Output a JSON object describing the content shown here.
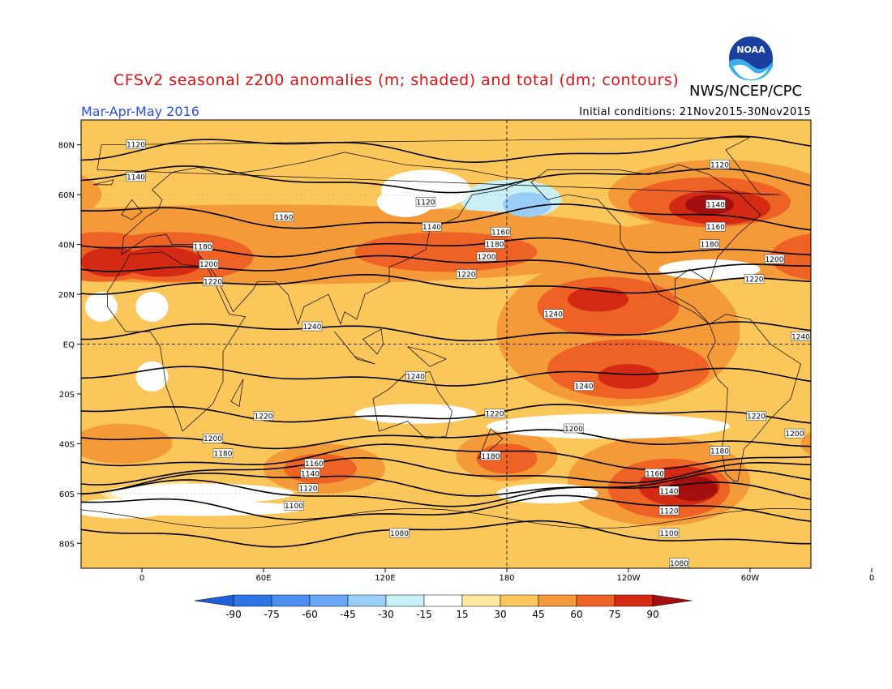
{
  "title": "CFSv2 seasonal z200 anomalies (m; shaded) and total (dm; contours)",
  "agency": "NWS/NCEP/CPC",
  "period": "Mar-Apr-May 2016",
  "initial_conditions": "Initial conditions: 21Nov2015-30Nov2015",
  "logo": {
    "text": "NOAA",
    "icon": "noaa-logo-icon"
  },
  "colors": {
    "background": "#ffffff",
    "title": "#e01010",
    "period": "#2a4ee0"
  },
  "axes": {
    "lat_labels": [
      "80N",
      "60N",
      "40N",
      "20N",
      "EQ",
      "20S",
      "40S",
      "60S",
      "80S"
    ],
    "lon_labels": [
      "0",
      "60E",
      "120E",
      "180",
      "120W",
      "60W",
      "0"
    ]
  },
  "colorbar": {
    "ticks": [
      "-90",
      "-75",
      "-60",
      "-45",
      "-30",
      "-15",
      "15",
      "30",
      "45",
      "60",
      "75",
      "90"
    ],
    "colors": [
      "#1c5fd6",
      "#2e75e8",
      "#4b8ff0",
      "#6aa8f5",
      "#9acdf8",
      "#c8f0f5",
      "#ffffff",
      "#ffe9a0",
      "#fcc75a",
      "#f49a38",
      "#ee6226",
      "#d42a14",
      "#a50e0e"
    ]
  },
  "contours": [
    {
      "label": "1120",
      "lat": 78
    },
    {
      "label": "1140",
      "lat": 66
    },
    {
      "label": "1160",
      "lat": 51
    },
    {
      "label": "1180",
      "lat": 39
    },
    {
      "label": "1200",
      "lat": 32
    },
    {
      "label": "1220",
      "lat": 24
    },
    {
      "label": "1240",
      "lat": 5
    },
    {
      "label": "1240",
      "lat": -13
    },
    {
      "label": "1220",
      "lat": -28
    },
    {
      "label": "1200",
      "lat": -38
    },
    {
      "label": "1180",
      "lat": -45
    },
    {
      "label": "1160",
      "lat": -51
    },
    {
      "label": "1140",
      "lat": -56
    },
    {
      "label": "1120",
      "lat": -60
    },
    {
      "label": "1100",
      "lat": -66
    },
    {
      "label": "1080",
      "lat": -76
    }
  ],
  "contour_labels": [
    {
      "text": "1120",
      "lon": -3,
      "lat": 80
    },
    {
      "text": "1120",
      "lon": 140,
      "lat": 57
    },
    {
      "text": "1120",
      "lon": 285,
      "lat": 72
    },
    {
      "text": "1140",
      "lon": -3,
      "lat": 67
    },
    {
      "text": "1140",
      "lon": 143,
      "lat": 47
    },
    {
      "text": "1140",
      "lon": 283,
      "lat": 56
    },
    {
      "text": "1160",
      "lon": 70,
      "lat": 51
    },
    {
      "text": "1160",
      "lon": 177,
      "lat": 45
    },
    {
      "text": "1160",
      "lon": 283,
      "lat": 47
    },
    {
      "text": "1180",
      "lon": 30,
      "lat": 39
    },
    {
      "text": "1180",
      "lon": 174,
      "lat": 40
    },
    {
      "text": "1180",
      "lon": 280,
      "lat": 40
    },
    {
      "text": "1200",
      "lon": 33,
      "lat": 32
    },
    {
      "text": "1200",
      "lon": 170,
      "lat": 35
    },
    {
      "text": "1200",
      "lon": 312,
      "lat": 34
    },
    {
      "text": "1220",
      "lon": 35,
      "lat": 25
    },
    {
      "text": "1220",
      "lon": 160,
      "lat": 28
    },
    {
      "text": "1220",
      "lon": 302,
      "lat": 26
    },
    {
      "text": "1240",
      "lon": 84,
      "lat": 7
    },
    {
      "text": "1240",
      "lon": 203,
      "lat": 12
    },
    {
      "text": "1240",
      "lon": 325,
      "lat": 3
    },
    {
      "text": "1240",
      "lon": 135,
      "lat": -13
    },
    {
      "text": "1240",
      "lon": 218,
      "lat": -17
    },
    {
      "text": "1220",
      "lon": 60,
      "lat": -29
    },
    {
      "text": "1220",
      "lon": 174,
      "lat": -28
    },
    {
      "text": "1220",
      "lon": 303,
      "lat": -29
    },
    {
      "text": "1200",
      "lon": 35,
      "lat": -38
    },
    {
      "text": "1200",
      "lon": 213,
      "lat": -34
    },
    {
      "text": "1200",
      "lon": 322,
      "lat": -36
    },
    {
      "text": "1180",
      "lon": 40,
      "lat": -44
    },
    {
      "text": "1180",
      "lon": 172,
      "lat": -45
    },
    {
      "text": "1180",
      "lon": 285,
      "lat": -43
    },
    {
      "text": "1160",
      "lon": 85,
      "lat": -48
    },
    {
      "text": "1160",
      "lon": 253,
      "lat": -52
    },
    {
      "text": "1140",
      "lon": 83,
      "lat": -52
    },
    {
      "text": "1140",
      "lon": 260,
      "lat": -59
    },
    {
      "text": "1120",
      "lon": 82,
      "lat": -58
    },
    {
      "text": "1120",
      "lon": 260,
      "lat": -67
    },
    {
      "text": "1100",
      "lon": 75,
      "lat": -65
    },
    {
      "text": "1100",
      "lon": 260,
      "lat": -76
    },
    {
      "text": "1080",
      "lon": 127,
      "lat": -76
    },
    {
      "text": "1080",
      "lon": 265,
      "lat": -88
    }
  ],
  "anomaly_regions": [
    {
      "level": 30,
      "lon": 180,
      "lat": 0,
      "rx": 200,
      "ry": 90
    },
    {
      "level": 15,
      "lon": 150,
      "lat": 57,
      "rx": 20,
      "ry": 10
    },
    {
      "level": 15,
      "lon": 5,
      "lat": 18,
      "rx": 10,
      "ry": 8
    },
    {
      "level": 15,
      "lon": 340,
      "lat": 18,
      "rx": 12,
      "ry": 8
    },
    {
      "level": 15,
      "lon": 170,
      "lat": -33,
      "rx": 80,
      "ry": 4
    },
    {
      "level": 15,
      "lon": 40,
      "lat": -60,
      "rx": 60,
      "ry": 5
    },
    {
      "level": 15,
      "lon": 200,
      "lat": -60,
      "rx": 40,
      "ry": 5
    },
    {
      "level": -15,
      "lon": 182,
      "lat": 58,
      "rx": 25,
      "ry": 8
    },
    {
      "level": -30,
      "lon": 190,
      "lat": 56,
      "rx": 12,
      "ry": 5
    },
    {
      "level": 45,
      "lon": 60,
      "lat": 40,
      "rx": 200,
      "ry": 16
    },
    {
      "level": 45,
      "lon": 235,
      "lat": 5,
      "rx": 60,
      "ry": 30
    },
    {
      "level": 45,
      "lon": 255,
      "lat": -55,
      "rx": 45,
      "ry": 18
    },
    {
      "level": 45,
      "lon": 90,
      "lat": -50,
      "rx": 30,
      "ry": 10
    },
    {
      "level": 45,
      "lon": 180,
      "lat": -45,
      "rx": 25,
      "ry": 10
    },
    {
      "level": 45,
      "lon": 350,
      "lat": -40,
      "rx": 25,
      "ry": 8
    },
    {
      "level": 45,
      "lon": 285,
      "lat": 60,
      "rx": 55,
      "ry": 14
    },
    {
      "level": 60,
      "lon": 15,
      "lat": 35,
      "rx": 40,
      "ry": 10
    },
    {
      "level": 60,
      "lon": 340,
      "lat": 35,
      "rx": 30,
      "ry": 10
    },
    {
      "level": 60,
      "lon": 150,
      "lat": 37,
      "rx": 45,
      "ry": 8
    },
    {
      "level": 60,
      "lon": 280,
      "lat": 57,
      "rx": 40,
      "ry": 10
    },
    {
      "level": 60,
      "lon": 230,
      "lat": 15,
      "rx": 35,
      "ry": 12
    },
    {
      "level": 60,
      "lon": 240,
      "lat": -10,
      "rx": 40,
      "ry": 12
    },
    {
      "level": 60,
      "lon": 260,
      "lat": -58,
      "rx": 30,
      "ry": 12
    },
    {
      "level": 60,
      "lon": 88,
      "lat": -50,
      "rx": 18,
      "ry": 6
    },
    {
      "level": 60,
      "lon": 180,
      "lat": -46,
      "rx": 15,
      "ry": 6
    },
    {
      "level": 75,
      "lon": 10,
      "lat": 33,
      "rx": 20,
      "ry": 6
    },
    {
      "level": 75,
      "lon": 345,
      "lat": 33,
      "rx": 15,
      "ry": 6
    },
    {
      "level": 75,
      "lon": 285,
      "lat": 55,
      "rx": 25,
      "ry": 7
    },
    {
      "level": 75,
      "lon": 225,
      "lat": 18,
      "rx": 15,
      "ry": 5
    },
    {
      "level": 75,
      "lon": 265,
      "lat": -57,
      "rx": 20,
      "ry": 8
    },
    {
      "level": 75,
      "lon": 240,
      "lat": -13,
      "rx": 15,
      "ry": 5
    },
    {
      "level": 90,
      "lon": 272,
      "lat": -58,
      "rx": 12,
      "ry": 5
    },
    {
      "level": 90,
      "lon": 280,
      "lat": 56,
      "rx": 12,
      "ry": 4
    }
  ],
  "white_regions": [
    {
      "lon": 140,
      "lat": 62,
      "rx": 22,
      "ry": 8
    },
    {
      "lon": 135,
      "lat": -28,
      "rx": 30,
      "ry": 4
    },
    {
      "lon": 230,
      "lat": -33,
      "rx": 60,
      "ry": 5
    },
    {
      "lon": 30,
      "lat": -60,
      "rx": 45,
      "ry": 4
    },
    {
      "lon": 30,
      "lat": -66,
      "rx": 50,
      "ry": 3
    },
    {
      "lon": 200,
      "lat": -60,
      "rx": 25,
      "ry": 4
    },
    {
      "lon": 350,
      "lat": -66,
      "rx": 25,
      "ry": 4
    },
    {
      "lon": 5,
      "lat": 15,
      "rx": 8,
      "ry": 6
    },
    {
      "lon": 340,
      "lat": 15,
      "rx": 8,
      "ry": 6
    },
    {
      "lon": 5,
      "lat": -13,
      "rx": 8,
      "ry": 6
    },
    {
      "lon": 280,
      "lat": 30,
      "rx": 25,
      "ry": 4
    },
    {
      "lon": 130,
      "lat": 57,
      "rx": 14,
      "ry": 6
    }
  ]
}
